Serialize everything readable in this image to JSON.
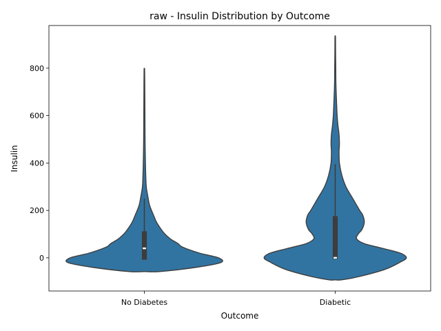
{
  "chart_data": {
    "type": "violin",
    "title": "raw - Insulin Distribution by Outcome",
    "xlabel": "Outcome",
    "ylabel": "Insulin",
    "categories": [
      "No Diabetes",
      "Diabetic"
    ],
    "ylim": [
      -140,
      980
    ],
    "yticks": [
      0,
      200,
      400,
      600,
      800
    ],
    "grid": false,
    "colors": {
      "violin_fill": "#3274a1",
      "violin_edge": "#3d3d3d",
      "box": "#3d3d3d",
      "median": "#ffffff"
    },
    "series": [
      {
        "category": "No Diabetes",
        "range": [
          -58,
          798
        ],
        "box": {
          "q1": -8,
          "median": 40,
          "q3": 112,
          "whisker_low": -8,
          "whisker_high": 250
        },
        "density": [
          [
            -58,
            0.2
          ],
          [
            -40,
            0.68
          ],
          [
            -20,
            1.0
          ],
          [
            0,
            0.97
          ],
          [
            20,
            0.72
          ],
          [
            45,
            0.5
          ],
          [
            60,
            0.44
          ],
          [
            80,
            0.34
          ],
          [
            100,
            0.27
          ],
          [
            120,
            0.22
          ],
          [
            150,
            0.16
          ],
          [
            180,
            0.12
          ],
          [
            220,
            0.07
          ],
          [
            260,
            0.045
          ],
          [
            300,
            0.025
          ],
          [
            350,
            0.018
          ],
          [
            400,
            0.014
          ],
          [
            450,
            0.011
          ],
          [
            500,
            0.009
          ],
          [
            560,
            0.008
          ],
          [
            620,
            0.007
          ],
          [
            680,
            0.006
          ],
          [
            740,
            0.005
          ],
          [
            780,
            0.004
          ],
          [
            798,
            0.003
          ]
        ]
      },
      {
        "category": "Diabetic",
        "range": [
          -93,
          934
        ],
        "box": {
          "q1": -5,
          "median": 0,
          "q3": 176,
          "whisker_low": -5,
          "whisker_high": 395
        },
        "density": [
          [
            -93,
            0.08
          ],
          [
            -80,
            0.3
          ],
          [
            -50,
            0.64
          ],
          [
            -20,
            0.84
          ],
          [
            0,
            0.93
          ],
          [
            20,
            0.85
          ],
          [
            40,
            0.62
          ],
          [
            60,
            0.38
          ],
          [
            80,
            0.28
          ],
          [
            100,
            0.3
          ],
          [
            120,
            0.35
          ],
          [
            150,
            0.38
          ],
          [
            180,
            0.36
          ],
          [
            200,
            0.32
          ],
          [
            250,
            0.23
          ],
          [
            300,
            0.14
          ],
          [
            350,
            0.085
          ],
          [
            400,
            0.055
          ],
          [
            450,
            0.05
          ],
          [
            480,
            0.055
          ],
          [
            520,
            0.05
          ],
          [
            560,
            0.035
          ],
          [
            600,
            0.025
          ],
          [
            650,
            0.018
          ],
          [
            700,
            0.012
          ],
          [
            750,
            0.008
          ],
          [
            800,
            0.007
          ],
          [
            850,
            0.005
          ],
          [
            900,
            0.004
          ],
          [
            934,
            0.003
          ]
        ]
      }
    ]
  }
}
